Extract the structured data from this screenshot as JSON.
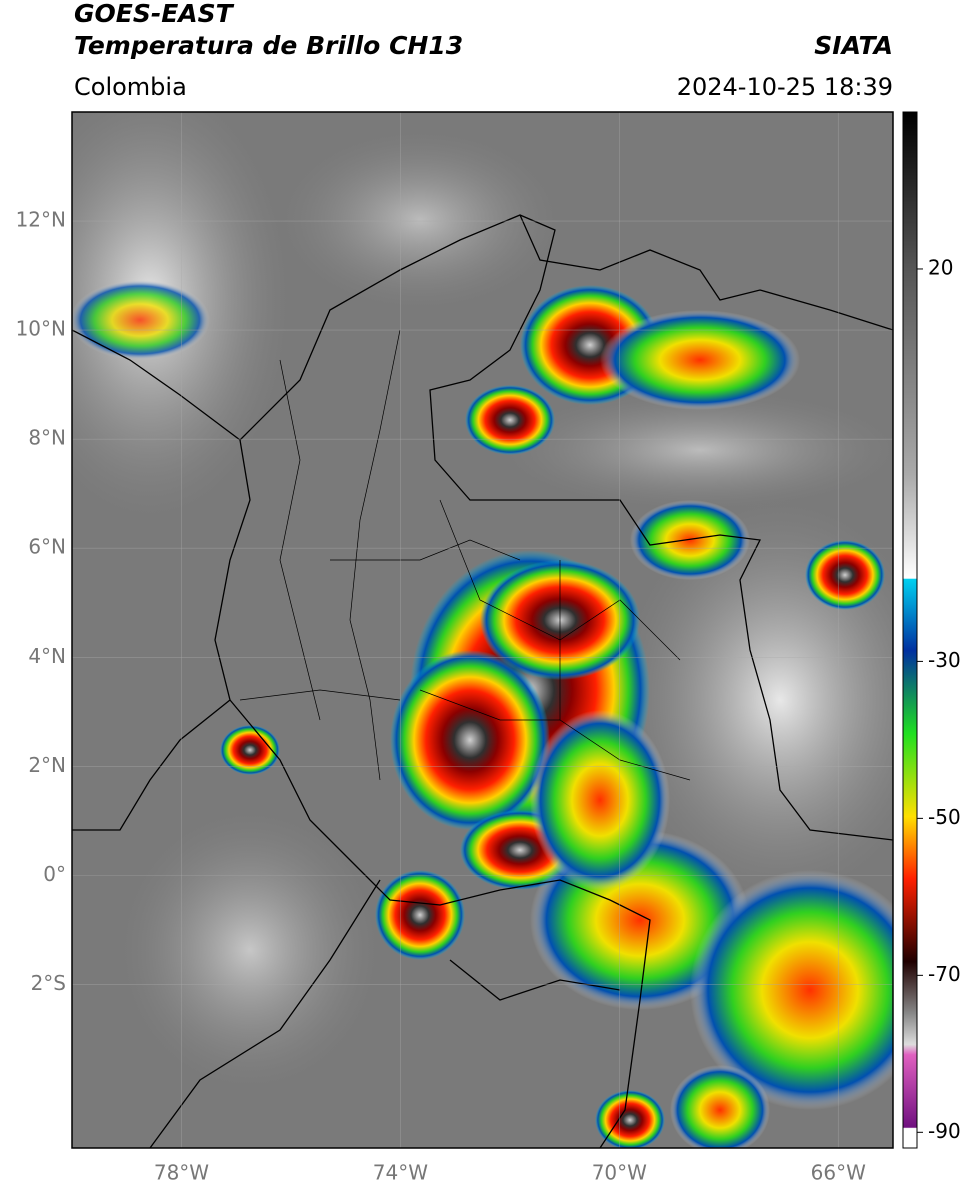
{
  "header": {
    "title": "GOES-EAST",
    "subtitle": "Temperatura de Brillo CH13",
    "region": "Colombia",
    "source": "SIATA",
    "datetime": "2024-10-25 18:39"
  },
  "map": {
    "lon_range": [
      -80,
      -65
    ],
    "lat_range": [
      -5,
      14
    ],
    "lat_ticks": [
      {
        "value": 12,
        "label": "12°N"
      },
      {
        "value": 10,
        "label": "10°N"
      },
      {
        "value": 8,
        "label": "8°N"
      },
      {
        "value": 6,
        "label": "6°N"
      },
      {
        "value": 4,
        "label": "4°N"
      },
      {
        "value": 2,
        "label": "2°N"
      },
      {
        "value": 0,
        "label": "0°"
      },
      {
        "value": -2,
        "label": "2°S"
      }
    ],
    "lon_ticks": [
      {
        "value": -78,
        "label": "78°W"
      },
      {
        "value": -74,
        "label": "74°W"
      },
      {
        "value": -70,
        "label": "70°W"
      },
      {
        "value": -66,
        "label": "66°W"
      }
    ],
    "grid": true
  },
  "colorbar": {
    "range": [
      -92,
      40
    ],
    "ticks": [
      20,
      -30,
      -50,
      -70,
      -90
    ]
  }
}
